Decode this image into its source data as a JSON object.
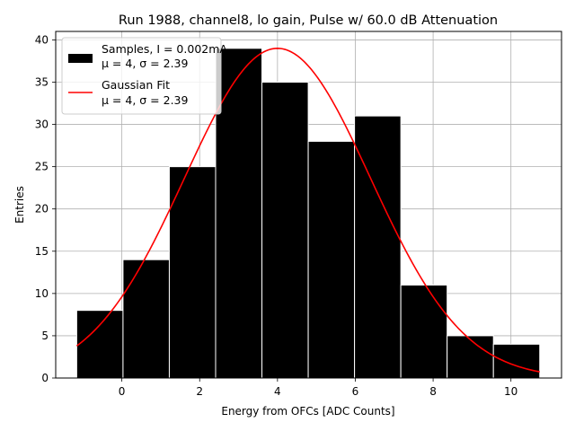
{
  "chart_data": {
    "type": "bar",
    "title": "Run 1988, channel8, lo gain, Pulse w/ 60.0 dB Attenuation",
    "xlabel": "Energy from OFCs [ADC Counts]",
    "ylabel": "Entries",
    "xlim": [
      -1.7,
      11.3
    ],
    "ylim": [
      0,
      41
    ],
    "xticks": [
      0,
      2,
      4,
      6,
      8,
      10
    ],
    "yticks": [
      0,
      5,
      10,
      15,
      20,
      25,
      30,
      35,
      40
    ],
    "grid": true,
    "legend_position": "top-left",
    "histogram": {
      "name": "Samples, I = 0.002mA",
      "stats": "μ = 4, σ = 2.39",
      "color": "#000000",
      "bin_edges": [
        -1.16,
        0.03,
        1.22,
        2.41,
        3.6,
        4.79,
        5.98,
        7.17,
        8.36,
        9.55,
        10.74
      ],
      "values": [
        8,
        14,
        25,
        39,
        35,
        28,
        31,
        11,
        5,
        4
      ]
    },
    "fit": {
      "name": "Gaussian Fit",
      "stats": "μ = 4, σ = 2.39",
      "color": "#ff0000",
      "mu": 4.0,
      "sigma": 2.39,
      "amplitude": 39.0,
      "x_range": [
        -1.16,
        10.74
      ]
    }
  }
}
